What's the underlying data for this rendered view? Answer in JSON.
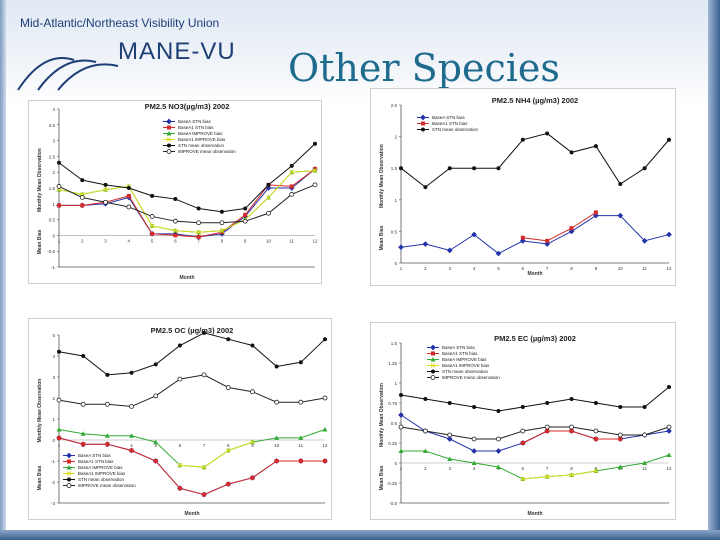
{
  "header": {
    "org_name": "Mid-Atlantic/Northeast Visibility Union",
    "logo_text": "MANE-VU",
    "slide_title": "Other Species"
  },
  "chart_data": [
    {
      "type": "line",
      "title": "PM2.5 NO3(µg/m3) 2002",
      "xlabel": "Month",
      "ylabel_bias": "Mean Bias",
      "ylabel_obs": "Monthly Mean Observation",
      "x": [
        1,
        2,
        3,
        4,
        5,
        6,
        7,
        8,
        9,
        10,
        11,
        12
      ],
      "ylim": [
        -1,
        4
      ],
      "yticks": [
        -1,
        -0.5,
        0,
        0.5,
        1,
        1.5,
        2,
        2.5,
        3,
        3.5,
        4
      ],
      "legend_position": "top-right",
      "series": [
        {
          "name": "BaseA STN bias",
          "color": "#2233aa",
          "marker": "diamond",
          "values": [
            0.95,
            0.95,
            1.0,
            1.2,
            0.05,
            0.05,
            -0.05,
            0.05,
            0.6,
            1.5,
            1.5,
            2.1
          ]
        },
        {
          "name": "BaseA1 STN bias",
          "color": "#d42a2a",
          "marker": "square",
          "values": [
            0.95,
            0.95,
            1.05,
            1.25,
            0.05,
            0.0,
            -0.05,
            0.1,
            0.65,
            1.6,
            1.55,
            2.1
          ]
        },
        {
          "name": "BaseA IMPROVE bias",
          "color": "#33aa33",
          "marker": "triangle",
          "values": [
            1.45,
            1.3,
            1.45,
            1.55,
            0.3,
            0.15,
            0.1,
            0.15,
            0.5,
            1.2,
            2.0,
            2.05
          ]
        },
        {
          "name": "BaseA1 IMPROVE bias",
          "color": "#dddd22",
          "marker": "x",
          "values": [
            1.45,
            1.3,
            1.45,
            1.55,
            0.3,
            0.15,
            0.1,
            0.15,
            0.5,
            1.2,
            2.0,
            2.05
          ]
        },
        {
          "name": "STN mean observation",
          "color": "#111111",
          "marker": "circle",
          "values": [
            2.3,
            1.75,
            1.6,
            1.5,
            1.25,
            1.15,
            0.85,
            0.75,
            0.85,
            1.6,
            2.2,
            2.9
          ]
        },
        {
          "name": "IMPROVE mean observation",
          "color": "#222222",
          "marker": "open-circle",
          "values": [
            1.55,
            1.2,
            1.05,
            0.9,
            0.6,
            0.45,
            0.4,
            0.4,
            0.45,
            0.7,
            1.3,
            1.6
          ]
        }
      ]
    },
    {
      "type": "line",
      "title": "PM2.5 NH4 (µg/m3) 2002",
      "xlabel": "Month",
      "ylabel_bias": "Mean Bias",
      "ylabel_obs": "Monthly Mean Observation",
      "x": [
        1,
        2,
        3,
        4,
        5,
        6,
        7,
        8,
        9,
        10,
        11,
        12
      ],
      "ylim": [
        0,
        2.5
      ],
      "yticks": [
        0,
        0.5,
        1,
        1.5,
        2,
        2.5
      ],
      "legend_position": "top-left",
      "series": [
        {
          "name": "BaseA STN bias",
          "color": "#2233aa",
          "marker": "diamond",
          "values": [
            0.25,
            0.3,
            0.2,
            0.45,
            0.15,
            0.35,
            0.3,
            0.5,
            0.75,
            0.75,
            0.35,
            0.45
          ]
        },
        {
          "name": "BaseA1 STN bias",
          "color": "#d42a2a",
          "marker": "square",
          "values": [
            null,
            null,
            null,
            null,
            null,
            0.4,
            0.35,
            0.55,
            0.8,
            null,
            null,
            null
          ]
        },
        {
          "name": "STN mean observation",
          "color": "#111111",
          "marker": "circle",
          "values": [
            1.5,
            1.2,
            1.5,
            1.5,
            1.5,
            1.95,
            2.05,
            1.75,
            1.85,
            1.25,
            1.5,
            1.95
          ]
        }
      ]
    },
    {
      "type": "line",
      "title": "PM2.5 OC (µg/m3) 2002",
      "xlabel": "Month",
      "ylabel_bias": "Mean Bias",
      "ylabel_obs": "Monthly Mean Observation",
      "x": [
        1,
        2,
        3,
        4,
        5,
        6,
        7,
        8,
        9,
        10,
        11,
        12
      ],
      "ylim": [
        -3,
        5
      ],
      "yticks": [
        -3,
        -2,
        -1,
        0,
        1,
        2,
        3,
        4,
        5
      ],
      "legend_position": "bottom-left",
      "series": [
        {
          "name": "BaseA STN bias",
          "color": "#2233aa",
          "marker": "diamond",
          "values": [
            0.1,
            -0.2,
            -0.2,
            -0.5,
            -1.0,
            -2.3,
            -2.6,
            -2.1,
            -1.8,
            -1.0,
            -1.0,
            -1.0
          ]
        },
        {
          "name": "BaseA1 STN bias",
          "color": "#d42a2a",
          "marker": "square",
          "values": [
            0.1,
            -0.2,
            -0.2,
            -0.5,
            -1.0,
            -2.3,
            -2.6,
            -2.1,
            -1.8,
            -1.0,
            -1.0,
            -1.0
          ]
        },
        {
          "name": "BaseA IMPROVE bias",
          "color": "#33aa33",
          "marker": "triangle",
          "values": [
            0.5,
            0.3,
            0.2,
            0.2,
            -0.1,
            -1.2,
            -1.3,
            -0.5,
            -0.1,
            0.1,
            0.1,
            0.5
          ]
        },
        {
          "name": "BaseA1 IMPROVE bias",
          "color": "#dddd22",
          "marker": "x",
          "values": [
            null,
            null,
            null,
            null,
            null,
            -1.2,
            -1.3,
            -0.5,
            -0.1,
            null,
            null,
            null
          ]
        },
        {
          "name": "STN mean observation",
          "color": "#111111",
          "marker": "circle",
          "values": [
            4.2,
            4.0,
            3.1,
            3.2,
            3.6,
            4.5,
            5.1,
            4.8,
            4.5,
            3.5,
            3.7,
            4.8
          ]
        },
        {
          "name": "IMPROVE mean observation",
          "color": "#222222",
          "marker": "open-circle",
          "values": [
            1.9,
            1.7,
            1.7,
            1.6,
            2.1,
            2.9,
            3.1,
            2.5,
            2.3,
            1.8,
            1.8,
            2.0
          ]
        }
      ]
    },
    {
      "type": "line",
      "title": "PM2.5 EC (µg/m3) 2002",
      "xlabel": "Month",
      "ylabel_bias": "Mean Bias",
      "ylabel_obs": "Monthly Mean Observation",
      "x": [
        1,
        2,
        3,
        4,
        5,
        6,
        7,
        8,
        9,
        10,
        11,
        12
      ],
      "ylim": [
        -0.5,
        1.5
      ],
      "yticks": [
        -0.5,
        -0.25,
        0,
        0.25,
        0.5,
        0.75,
        1,
        1.25,
        1.5
      ],
      "legend_position": "top-left",
      "series": [
        {
          "name": "BaseA STN bias",
          "color": "#2233aa",
          "marker": "diamond",
          "values": [
            0.6,
            0.4,
            0.3,
            0.15,
            0.15,
            0.25,
            0.4,
            0.4,
            0.3,
            0.3,
            0.35,
            0.4
          ]
        },
        {
          "name": "BaseA1 STN bias",
          "color": "#d42a2a",
          "marker": "square",
          "values": [
            null,
            null,
            null,
            null,
            null,
            0.25,
            0.4,
            0.4,
            0.3,
            0.3,
            null,
            null
          ]
        },
        {
          "name": "BaseA IMPROVE bias",
          "color": "#33aa33",
          "marker": "triangle",
          "values": [
            0.15,
            0.15,
            0.05,
            0.0,
            -0.05,
            -0.2,
            -0.17,
            -0.15,
            -0.1,
            -0.05,
            0.0,
            0.1
          ]
        },
        {
          "name": "BaseA1 IMPROVE bias",
          "color": "#dddd22",
          "marker": "x",
          "values": [
            null,
            null,
            null,
            null,
            null,
            -0.2,
            -0.17,
            -0.15,
            -0.1,
            null,
            null,
            null
          ]
        },
        {
          "name": "STN mean observation",
          "color": "#111111",
          "marker": "circle",
          "values": [
            0.85,
            0.8,
            0.75,
            0.7,
            0.65,
            0.7,
            0.75,
            0.8,
            0.75,
            0.7,
            0.7,
            0.95
          ]
        },
        {
          "name": "IMPROVE mean observation",
          "color": "#222222",
          "marker": "open-circle",
          "values": [
            0.45,
            0.4,
            0.35,
            0.3,
            0.3,
            0.4,
            0.45,
            0.45,
            0.4,
            0.35,
            0.35,
            0.45
          ]
        }
      ]
    }
  ]
}
